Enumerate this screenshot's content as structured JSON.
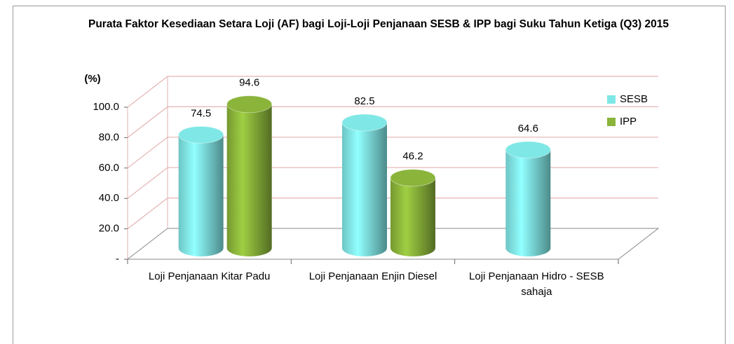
{
  "chart_data": {
    "type": "bar3d",
    "title": "Purata Faktor Kesediaan Setara Loji (AF) bagi Loji-Loji Penjanaan SESB & IPP bagi Suku Tahun Ketiga (Q3) 2015",
    "y_label": "(%)",
    "categories": [
      "Loji Penjanaan Kitar Padu",
      "Loji Penjanaan Enjin Diesel",
      "Loji Penjanaan Hidro - SESB sahaja"
    ],
    "series": [
      {
        "name": "SESB",
        "color": "#7fe8e6",
        "values": [
          74.5,
          82.5,
          64.6
        ]
      },
      {
        "name": "IPP",
        "color": "#8ab43a",
        "values": [
          94.6,
          46.2,
          null
        ]
      }
    ],
    "ylim": [
      0,
      100
    ],
    "yticks": [
      {
        "value": 0,
        "label": "-"
      },
      {
        "value": 20,
        "label": "20.0"
      },
      {
        "value": 40,
        "label": "40.0"
      },
      {
        "value": 60,
        "label": "60.0"
      },
      {
        "value": 80,
        "label": "80.0"
      },
      {
        "value": 100,
        "label": "100.0"
      }
    ],
    "grid": true,
    "legend": "right"
  }
}
